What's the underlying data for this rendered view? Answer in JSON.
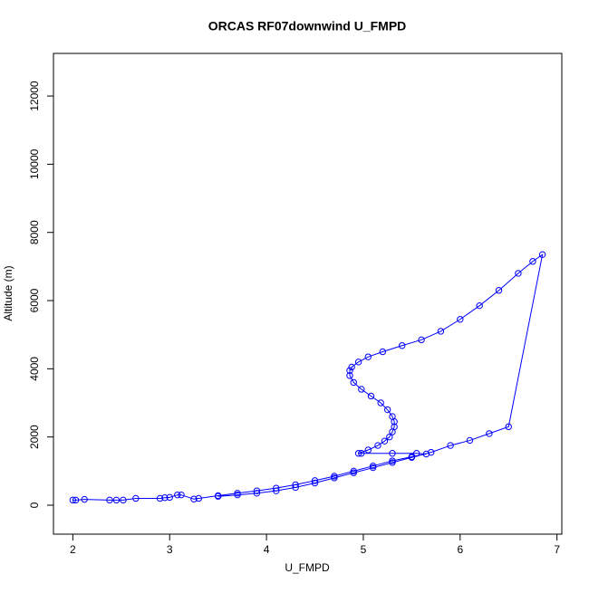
{
  "chart_data": {
    "type": "scatter",
    "title": "ORCAS RF07downwind U_FMPD",
    "x_label": "U_FMPD",
    "y_label": "Altitude (m)",
    "xlim": [
      1.8,
      7.05
    ],
    "ylim": [
      -850,
      13250
    ],
    "xticks": [
      2,
      3,
      4,
      5,
      6,
      7
    ],
    "yticks": [
      0,
      2000,
      4000,
      6000,
      8000,
      10000,
      12000
    ],
    "series": [
      {
        "color": "#0000ff",
        "x": [
          2.0,
          2.03,
          2.12,
          2.38,
          2.45,
          2.52,
          2.65,
          2.9,
          2.95,
          3.0,
          3.08,
          3.12,
          3.25,
          3.3,
          3.5,
          3.7,
          3.9,
          4.1,
          4.3,
          4.5,
          4.7,
          4.9,
          5.1,
          5.3,
          5.5,
          5.65,
          5.55,
          5.3,
          4.98,
          4.95,
          5.05,
          5.15,
          5.22,
          5.27,
          5.3,
          5.32,
          5.32,
          5.3,
          5.25,
          5.18,
          5.08,
          4.98,
          4.9,
          4.86,
          4.86,
          4.88,
          4.95,
          5.05,
          5.2,
          5.4,
          5.6,
          5.8,
          6.0,
          6.2,
          6.4,
          6.6,
          6.75,
          6.85,
          6.5,
          6.3,
          6.1,
          5.9,
          5.7,
          5.5,
          5.3,
          5.1,
          4.9,
          4.7,
          4.5,
          4.3,
          4.1,
          3.9,
          3.7,
          3.5
        ],
        "y": [
          150,
          150,
          170,
          150,
          150,
          150,
          200,
          200,
          220,
          230,
          300,
          300,
          180,
          200,
          280,
          350,
          420,
          500,
          600,
          720,
          850,
          1000,
          1150,
          1300,
          1420,
          1500,
          1520,
          1520,
          1520,
          1520,
          1620,
          1750,
          1880,
          2000,
          2150,
          2300,
          2450,
          2600,
          2800,
          3000,
          3200,
          3400,
          3600,
          3800,
          3950,
          4050,
          4200,
          4350,
          4500,
          4680,
          4850,
          5100,
          5450,
          5850,
          6300,
          6800,
          7150,
          7350,
          2300,
          2100,
          1900,
          1750,
          1550,
          1400,
          1250,
          1100,
          950,
          800,
          650,
          520,
          420,
          350,
          300,
          260
        ]
      }
    ]
  }
}
